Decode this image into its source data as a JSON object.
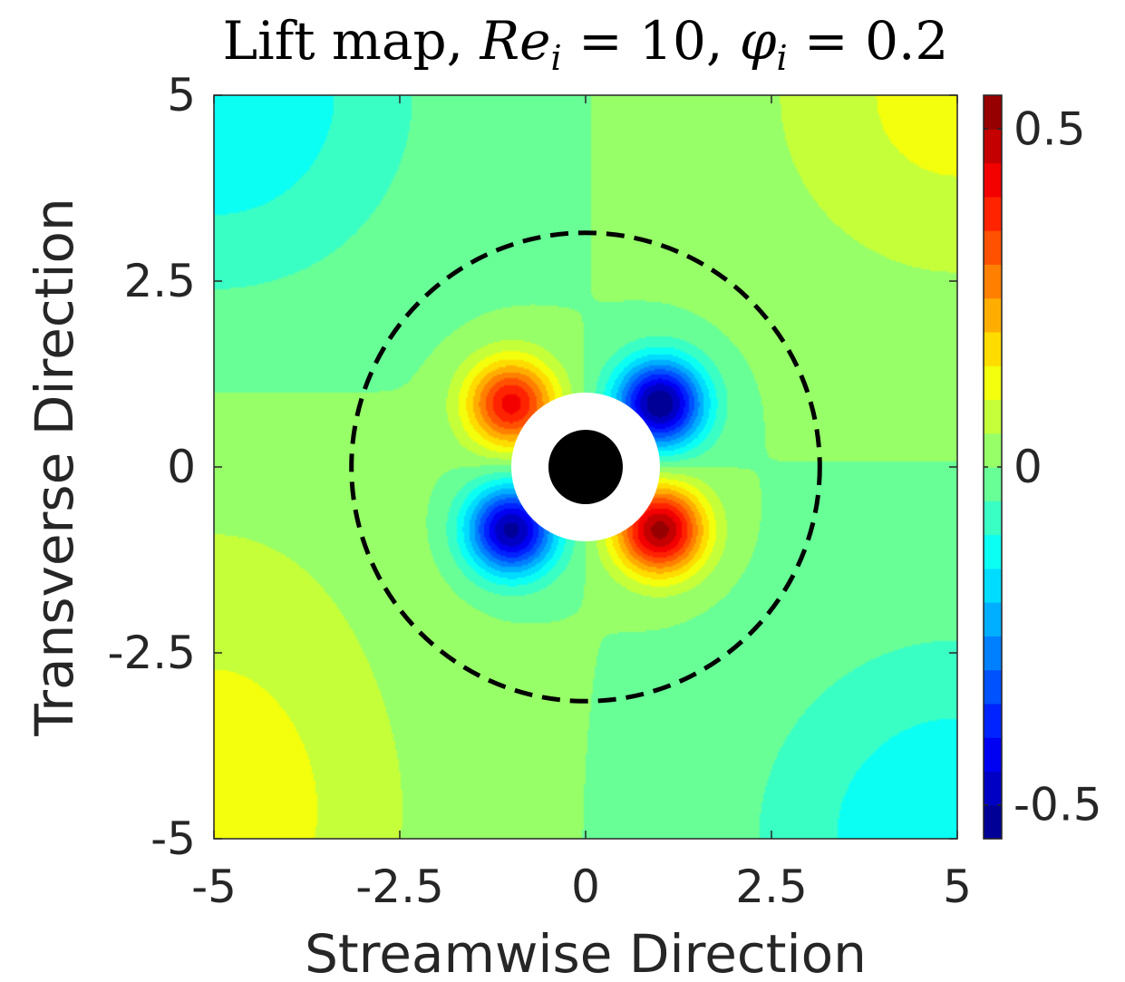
{
  "chart_data": {
    "type": "heatmap",
    "title": {
      "prefix": "Lift map, ",
      "re_symbol": "Re",
      "re_subscript": "i",
      "re_value": " = 10, ",
      "phi_symbol": "φ",
      "phi_subscript": "i",
      "phi_value": " = 0.2"
    },
    "xlabel": "Streamwise Direction",
    "ylabel": "Transverse Direction",
    "xlim": [
      -5,
      5
    ],
    "ylim": [
      -5,
      5
    ],
    "x_ticks": [
      -5,
      -2.5,
      0,
      2.5,
      5
    ],
    "x_tick_labels": [
      "-5",
      "-2.5",
      "0",
      "2.5",
      "5"
    ],
    "y_ticks": [
      -5,
      -2.5,
      0,
      2.5,
      5
    ],
    "y_tick_labels": [
      "-5",
      "-2.5",
      "0",
      "2.5",
      "5"
    ],
    "colorbar": {
      "range": [
        -0.55,
        0.55
      ],
      "ticks": [
        -0.5,
        0,
        0.5
      ],
      "tick_labels": [
        "-0.5",
        "0",
        "0.5"
      ],
      "colormap": "jet",
      "levels": 22
    },
    "particle": {
      "center": [
        0,
        0
      ],
      "radius": 0.5,
      "color": "#000000"
    },
    "excluded_zone": {
      "center": [
        0,
        0
      ],
      "radius": 1.0,
      "color": "#ffffff"
    },
    "dashed_circle": {
      "center": [
        0,
        0
      ],
      "radius": 3.15,
      "color": "#000000"
    },
    "field_description": "quadrupole lift: positive upper-left and lower-right lobes, negative upper-right and lower-left lobes",
    "lobes": [
      {
        "center": [
          -1.0,
          0.85
        ],
        "peak": 0.42
      },
      {
        "center": [
          1.0,
          0.85
        ],
        "peak": -0.55
      },
      {
        "center": [
          -1.0,
          -0.85
        ],
        "peak": -0.52
      },
      {
        "center": [
          1.0,
          -0.85
        ],
        "peak": 0.52
      }
    ],
    "background_regions": [
      {
        "center": [
          -5,
          5
        ],
        "value": -0.15
      },
      {
        "center": [
          5,
          -5
        ],
        "value": -0.15
      },
      {
        "center": [
          5,
          5
        ],
        "value": 0.12
      },
      {
        "center": [
          -5,
          -5
        ],
        "value": 0.12
      },
      {
        "center": [
          -5,
          -2
        ],
        "value": 0.05
      }
    ]
  }
}
